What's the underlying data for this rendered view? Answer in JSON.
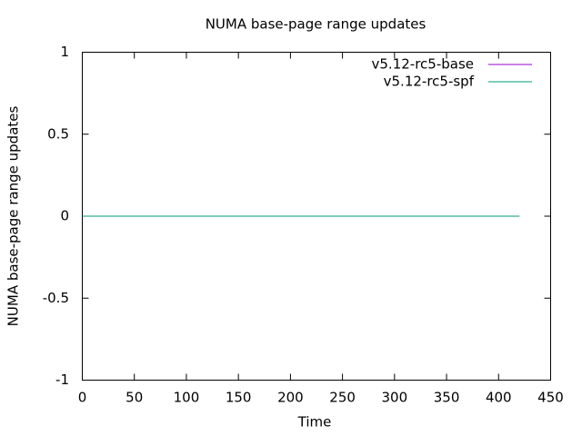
{
  "chart_data": {
    "type": "line",
    "title": "NUMA base-page range updates",
    "x_label": "Time",
    "y_label": "NUMA base-page range updates",
    "x": [
      0,
      420
    ],
    "series": [
      {
        "name": "v5.12-rc5-base",
        "color": "#9400d3",
        "values": [
          0,
          0
        ]
      },
      {
        "name": "v5.12-rc5-spf",
        "color": "#009e73",
        "values": [
          0,
          0
        ]
      }
    ],
    "xlim": [
      0,
      450
    ],
    "xticks": [
      0,
      50,
      100,
      150,
      200,
      250,
      300,
      350,
      400,
      450
    ],
    "ylim": [
      -1,
      1
    ],
    "yticks": [
      -1,
      -0.5,
      0,
      0.5,
      1
    ],
    "legend": "top-right",
    "grid": false
  }
}
